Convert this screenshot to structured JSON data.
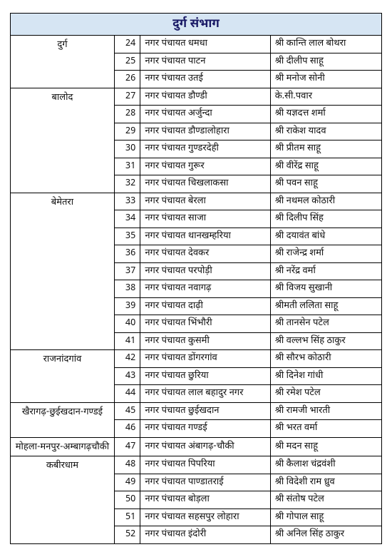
{
  "header": "दुर्ग संभाग",
  "columns": {
    "district": "",
    "sn": "",
    "nagar": "",
    "name": ""
  },
  "groups": [
    {
      "district": "दुर्ग",
      "rows": [
        {
          "sn": 24,
          "nagar": "नगर पंचायत धमधा",
          "name": "श्री कान्ति लाल बोथरा"
        },
        {
          "sn": 25,
          "nagar": "नगर पंचायत पाटन",
          "name": "श्री दीलीप साहू"
        },
        {
          "sn": 26,
          "nagar": "नगर पंचायत उतई",
          "name": "श्री मनोज सोनी"
        }
      ]
    },
    {
      "district": "बालोद",
      "rows": [
        {
          "sn": 27,
          "nagar": "नगर पंचायत डौण्डी",
          "name": "के.सी.पवार"
        },
        {
          "sn": 28,
          "nagar": "नगर पंचायत अर्जुन्दा",
          "name": "श्री यज्ञदत्त शर्मा"
        },
        {
          "sn": 29,
          "nagar": "नगर पंचायत डौण्डालोहारा",
          "name": "श्री राकेश यादव"
        },
        {
          "sn": 30,
          "nagar": "नगर पंचायत गुण्डरदेही",
          "name": "श्री प्रीतम साहू"
        },
        {
          "sn": 31,
          "nagar": "नगर पंचायत गुरूर",
          "name": "श्री वीरेंद्र साहू"
        },
        {
          "sn": 32,
          "nagar": "नगर पंचायत चिखलाकसा",
          "name": "श्री पवन साहू"
        }
      ]
    },
    {
      "district": "बेमेतरा",
      "rows": [
        {
          "sn": 33,
          "nagar": "नगर पंचायत बेरला",
          "name": "श्री नथमल कोठारी"
        },
        {
          "sn": 34,
          "nagar": "नगर पंचायत साजा",
          "name": "श्री दिलीप सिंह"
        },
        {
          "sn": 35,
          "nagar": "नगर पंचायत थानखम्हरिया",
          "name": "श्री दयावंत बांधे"
        },
        {
          "sn": 36,
          "nagar": "नगर पंचायत देवकर",
          "name": "श्री राजेन्द्र शर्मा"
        },
        {
          "sn": 37,
          "nagar": "नगर पंचायत परपोड़ी",
          "name": "श्री नरेंद्र वर्मा"
        },
        {
          "sn": 38,
          "nagar": "नगर पंचायत नवागढ़",
          "name": "श्री विजय सुखानी"
        },
        {
          "sn": 39,
          "nagar": "नगर पंचायत दाढ़ी",
          "name": "श्रीमती ललिता साहू"
        },
        {
          "sn": 40,
          "nagar": "नगर पंचायत भिंभौरी",
          "name": "श्री तानसेन पटेल"
        },
        {
          "sn": 41,
          "nagar": "नगर पंचायत कुसमी",
          "name": "श्री वल्लभ सिंह ठाकुर"
        }
      ]
    },
    {
      "district": "राजनांदगांव",
      "rows": [
        {
          "sn": 42,
          "nagar": "नगर पंचायत डोंगरगांव",
          "name": "श्री सौरभ कोठारी"
        },
        {
          "sn": 43,
          "nagar": "नगर पंचायत छुरिया",
          "name": "श्री दिनेश गांधी"
        },
        {
          "sn": 44,
          "nagar": "नगर पंचायत लाल बहादुर नगर",
          "name": "श्री रमेश पटेल"
        }
      ]
    },
    {
      "district": "खैरागढ़-छुईखदान-गण्डई",
      "rows": [
        {
          "sn": 45,
          "nagar": "नगर पंचायत छुईखदान",
          "name": "श्री रामजी भारती"
        },
        {
          "sn": 46,
          "nagar": "नगर पंचायत गण्डई",
          "name": "श्री भरत वर्मा"
        }
      ]
    },
    {
      "district": "मोहला-मनपुर-अम्बागढ़चौकी",
      "rows": [
        {
          "sn": 47,
          "nagar": "नगर पंचायत अंबागढ़-चौकी",
          "name": "श्री मदन साहू"
        }
      ]
    },
    {
      "district": "कबीरधाम",
      "rows": [
        {
          "sn": 48,
          "nagar": "नगर पंचायत पिपरिया",
          "name": "श्री कैलाश चंद्रवंशी"
        },
        {
          "sn": 49,
          "nagar": "नगर पंचायत पाण्डातराई",
          "name": "श्री विदेशी राम ध्रुव"
        },
        {
          "sn": 50,
          "nagar": "नगर पंचायत बोड़ला",
          "name": "श्री संतोष पटेल"
        },
        {
          "sn": 51,
          "nagar": "नगर पंचायत सहसपुर लोहारा",
          "name": "श्री गोपाल साहू"
        },
        {
          "sn": 52,
          "nagar": "नगर पंचायत इंदोरी",
          "name": "श्री अनिल सिंह ठाकुर"
        }
      ]
    }
  ]
}
